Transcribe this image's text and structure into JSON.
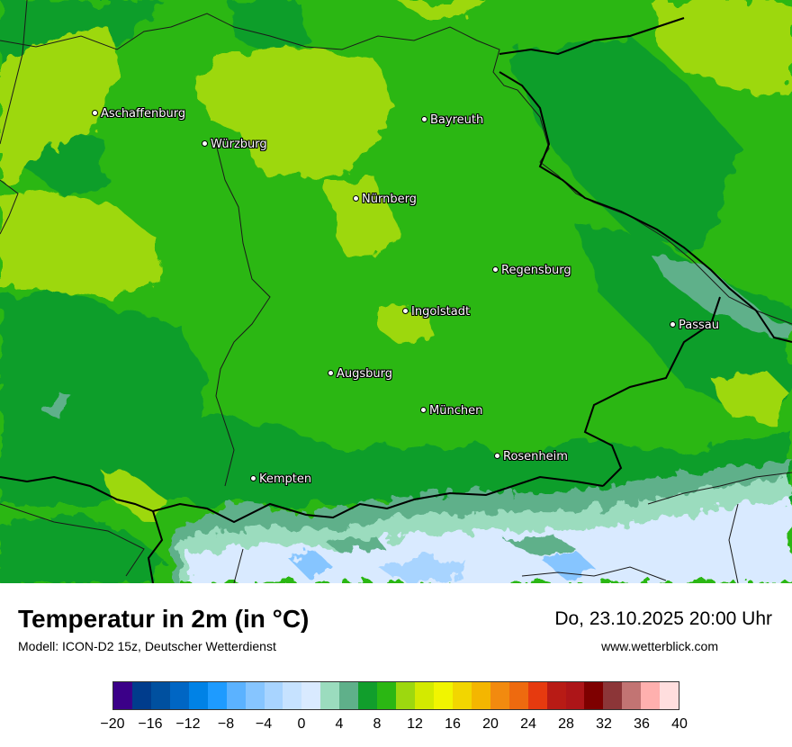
{
  "map": {
    "cities": [
      {
        "name": "Aschaffenburg"
      },
      {
        "name": "Bayreuth"
      },
      {
        "name": "Würzburg"
      },
      {
        "name": "Nürnberg"
      },
      {
        "name": "Regensburg"
      },
      {
        "name": "Ingolstadt"
      },
      {
        "name": "Passau"
      },
      {
        "name": "Augsburg"
      },
      {
        "name": "München"
      },
      {
        "name": "Rosenheim"
      },
      {
        "name": "Kempten"
      }
    ]
  },
  "footer": {
    "title": "Temperatur in 2m (in °C)",
    "model": "Modell: ICON-D2 15z, Deutscher Wetterdienst",
    "datetime": "Do, 23.10.2025 20:00 Uhr",
    "site": "www.wetterblick.com"
  },
  "legend": {
    "tick_labels": [
      "−20",
      "−16",
      "−12",
      "−8",
      "−4",
      "0",
      "4",
      "8",
      "12",
      "16",
      "20",
      "24",
      "28",
      "32",
      "36",
      "40"
    ],
    "colors": [
      "#3b0088",
      "#003c8c",
      "#00509f",
      "#0066c4",
      "#0082e6",
      "#1e9bff",
      "#5bb2ff",
      "#86c5ff",
      "#a8d4ff",
      "#c6e2ff",
      "#d9eaff",
      "#9bdcbe",
      "#5fb08a",
      "#119e2c",
      "#2bb713",
      "#9dd80f",
      "#d3ea00",
      "#f1f500",
      "#f2d600",
      "#f4b600",
      "#f28a0f",
      "#ee6a0f",
      "#e63a0f",
      "#b81b15",
      "#ad1518",
      "#7e0000",
      "#8c3638",
      "#c27473",
      "#ffb0ae",
      "#ffdede"
    ]
  }
}
